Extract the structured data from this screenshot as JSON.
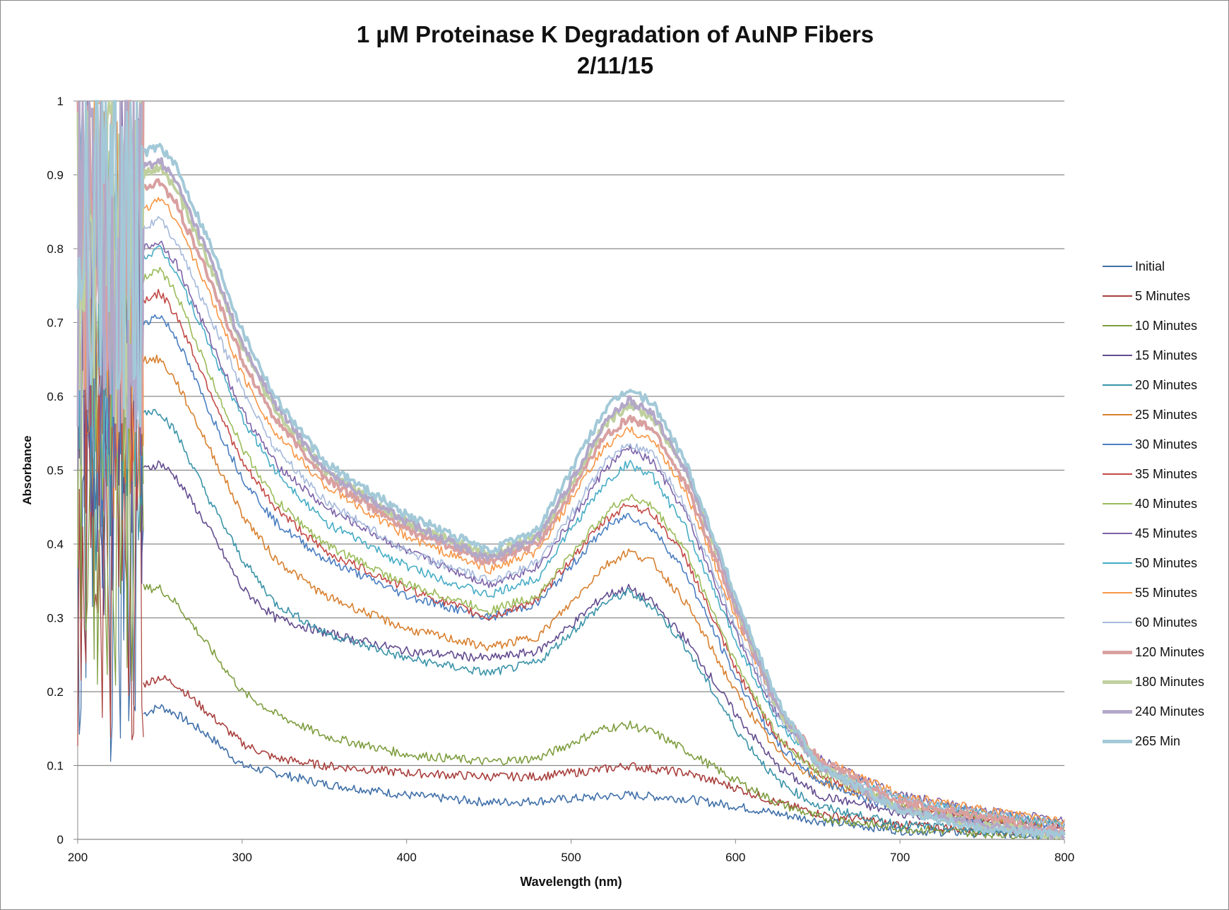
{
  "chart_data": {
    "type": "line",
    "title": "1 µM Proteinase K Degradation of AuNP Fibers",
    "subtitle": "2/11/15",
    "xlabel": "Wavelength (nm)",
    "ylabel": "Absorbance",
    "xlim": [
      200,
      800
    ],
    "ylim": [
      0,
      1
    ],
    "x_ticks": [
      "200",
      "300",
      "400",
      "500",
      "600",
      "700",
      "800"
    ],
    "y_ticks": [
      "0",
      "0.1",
      "0.2",
      "0.3",
      "0.4",
      "0.5",
      "0.6",
      "0.7",
      "0.8",
      "0.9",
      "1"
    ],
    "grid": "horizontal",
    "legend_position": "right",
    "x": [
      240,
      250,
      260,
      280,
      300,
      320,
      350,
      400,
      450,
      480,
      500,
      520,
      535,
      550,
      570,
      600,
      625,
      650,
      700,
      750,
      800
    ],
    "series": [
      {
        "name": "Initial",
        "color": "#3F6FA8",
        "values": [
          0.17,
          0.18,
          0.17,
          0.14,
          0.1,
          0.09,
          0.075,
          0.06,
          0.05,
          0.052,
          0.055,
          0.058,
          0.06,
          0.058,
          0.055,
          0.045,
          0.035,
          0.025,
          0.012,
          0.008,
          0.005
        ]
      },
      {
        "name": "5 Minutes",
        "color": "#A8403D",
        "values": [
          0.21,
          0.22,
          0.21,
          0.17,
          0.13,
          0.11,
          0.1,
          0.09,
          0.085,
          0.085,
          0.09,
          0.095,
          0.1,
          0.095,
          0.09,
          0.07,
          0.05,
          0.035,
          0.02,
          0.012,
          0.008
        ]
      },
      {
        "name": "10 Minutes",
        "color": "#7E9D3F",
        "values": [
          0.34,
          0.34,
          0.32,
          0.26,
          0.2,
          0.17,
          0.14,
          0.115,
          0.105,
          0.11,
          0.13,
          0.15,
          0.155,
          0.145,
          0.12,
          0.08,
          0.05,
          0.03,
          0.015,
          0.008,
          0.005
        ]
      },
      {
        "name": "15 Minutes",
        "color": "#634C8F",
        "values": [
          0.5,
          0.51,
          0.49,
          0.42,
          0.34,
          0.3,
          0.28,
          0.255,
          0.245,
          0.255,
          0.29,
          0.33,
          0.34,
          0.32,
          0.27,
          0.17,
          0.1,
          0.06,
          0.035,
          0.025,
          0.015
        ]
      },
      {
        "name": "20 Minutes",
        "color": "#3A93A8",
        "values": [
          0.58,
          0.58,
          0.55,
          0.46,
          0.38,
          0.32,
          0.28,
          0.245,
          0.225,
          0.24,
          0.28,
          0.32,
          0.335,
          0.315,
          0.26,
          0.15,
          0.08,
          0.045,
          0.02,
          0.012,
          0.008
        ]
      },
      {
        "name": "25 Minutes",
        "color": "#D8802F",
        "values": [
          0.65,
          0.65,
          0.62,
          0.53,
          0.44,
          0.38,
          0.33,
          0.285,
          0.26,
          0.275,
          0.32,
          0.37,
          0.39,
          0.375,
          0.32,
          0.2,
          0.12,
          0.08,
          0.045,
          0.03,
          0.02
        ]
      },
      {
        "name": "30 Minutes",
        "color": "#4A7EC0",
        "values": [
          0.7,
          0.71,
          0.68,
          0.58,
          0.49,
          0.43,
          0.38,
          0.33,
          0.3,
          0.32,
          0.37,
          0.42,
          0.44,
          0.42,
          0.36,
          0.22,
          0.13,
          0.08,
          0.04,
          0.025,
          0.015
        ]
      },
      {
        "name": "35 Minutes",
        "color": "#C24A46",
        "values": [
          0.73,
          0.74,
          0.71,
          0.61,
          0.51,
          0.45,
          0.39,
          0.34,
          0.3,
          0.325,
          0.38,
          0.43,
          0.455,
          0.44,
          0.38,
          0.23,
          0.14,
          0.09,
          0.045,
          0.03,
          0.02
        ]
      },
      {
        "name": "40 Minutes",
        "color": "#9ABB59",
        "values": [
          0.76,
          0.77,
          0.74,
          0.63,
          0.53,
          0.46,
          0.4,
          0.345,
          0.31,
          0.33,
          0.385,
          0.44,
          0.465,
          0.45,
          0.39,
          0.24,
          0.14,
          0.09,
          0.045,
          0.03,
          0.02
        ]
      },
      {
        "name": "45 Minutes",
        "color": "#7C63A8",
        "values": [
          0.8,
          0.81,
          0.78,
          0.68,
          0.58,
          0.51,
          0.45,
          0.39,
          0.345,
          0.37,
          0.43,
          0.5,
          0.53,
          0.51,
          0.44,
          0.28,
          0.17,
          0.11,
          0.06,
          0.04,
          0.025
        ]
      },
      {
        "name": "50 Minutes",
        "color": "#46ACC5",
        "values": [
          0.79,
          0.8,
          0.77,
          0.67,
          0.57,
          0.5,
          0.43,
          0.37,
          0.33,
          0.355,
          0.42,
          0.48,
          0.51,
          0.49,
          0.42,
          0.27,
          0.16,
          0.1,
          0.055,
          0.035,
          0.02
        ]
      },
      {
        "name": "55 Minutes",
        "color": "#F79646",
        "values": [
          0.85,
          0.87,
          0.84,
          0.74,
          0.63,
          0.55,
          0.48,
          0.41,
          0.365,
          0.39,
          0.46,
          0.53,
          0.555,
          0.54,
          0.47,
          0.3,
          0.18,
          0.11,
          0.06,
          0.04,
          0.025
        ]
      },
      {
        "name": "60 Minutes",
        "color": "#A5B9DB",
        "values": [
          0.83,
          0.84,
          0.81,
          0.71,
          0.61,
          0.53,
          0.46,
          0.39,
          0.35,
          0.375,
          0.44,
          0.51,
          0.535,
          0.52,
          0.45,
          0.29,
          0.17,
          0.1,
          0.055,
          0.035,
          0.02
        ]
      },
      {
        "name": "120 Minutes",
        "color": "#D9A0A0",
        "values": [
          0.88,
          0.89,
          0.86,
          0.76,
          0.65,
          0.57,
          0.49,
          0.42,
          0.375,
          0.4,
          0.47,
          0.545,
          0.57,
          0.555,
          0.48,
          0.31,
          0.18,
          0.11,
          0.05,
          0.03,
          0.01
        ]
      },
      {
        "name": "180 Minutes",
        "color": "#BFD09E",
        "values": [
          0.9,
          0.91,
          0.88,
          0.78,
          0.67,
          0.58,
          0.5,
          0.43,
          0.385,
          0.41,
          0.48,
          0.56,
          0.59,
          0.57,
          0.5,
          0.32,
          0.18,
          0.1,
          0.04,
          0.02,
          0.005
        ]
      },
      {
        "name": "240 Minutes",
        "color": "#B3A8C8",
        "values": [
          0.91,
          0.92,
          0.89,
          0.79,
          0.67,
          0.59,
          0.5,
          0.43,
          0.38,
          0.41,
          0.485,
          0.565,
          0.595,
          0.575,
          0.5,
          0.32,
          0.18,
          0.1,
          0.04,
          0.02,
          0.005
        ]
      },
      {
        "name": "265 Min",
        "color": "#A3C9D8",
        "values": [
          0.93,
          0.94,
          0.91,
          0.81,
          0.69,
          0.6,
          0.51,
          0.44,
          0.39,
          0.42,
          0.5,
          0.58,
          0.61,
          0.59,
          0.51,
          0.33,
          0.19,
          0.1,
          0.04,
          0.015,
          0.005
        ]
      }
    ]
  }
}
